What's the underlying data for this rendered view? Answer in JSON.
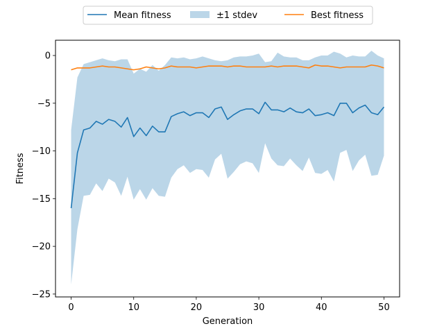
{
  "chart_data": {
    "type": "line",
    "title": "",
    "xlabel": "Generation",
    "ylabel": "Fitness",
    "xlim": [
      -2.5,
      52.5
    ],
    "ylim": [
      -25.3,
      1.6
    ],
    "xticks": [
      0,
      10,
      20,
      30,
      40,
      50
    ],
    "yticks": [
      0,
      -5,
      -10,
      -15,
      -20,
      -25
    ],
    "grid": false,
    "legend_position": "top-center, above plot",
    "x": [
      0,
      1,
      2,
      3,
      4,
      5,
      6,
      7,
      8,
      9,
      10,
      11,
      12,
      13,
      14,
      15,
      16,
      17,
      18,
      19,
      20,
      21,
      22,
      23,
      24,
      25,
      26,
      27,
      28,
      29,
      30,
      31,
      32,
      33,
      34,
      35,
      36,
      37,
      38,
      39,
      40,
      41,
      42,
      43,
      44,
      45,
      46,
      47,
      48,
      49,
      50
    ],
    "series": [
      {
        "name": "Mean fitness",
        "kind": "line",
        "color": "#1f77b4",
        "values": [
          -16.0,
          -10.2,
          -7.8,
          -7.6,
          -6.9,
          -7.2,
          -6.7,
          -6.9,
          -7.5,
          -6.5,
          -8.5,
          -7.6,
          -8.4,
          -7.4,
          -8.0,
          -8.0,
          -6.4,
          -6.1,
          -5.9,
          -6.3,
          -6.0,
          -6.0,
          -6.5,
          -5.6,
          -5.4,
          -6.7,
          -6.2,
          -5.8,
          -5.6,
          -5.6,
          -6.1,
          -4.9,
          -5.7,
          -5.7,
          -5.9,
          -5.5,
          -5.9,
          -6.0,
          -5.6,
          -6.3,
          -6.2,
          -6.0,
          -6.3,
          -5.0,
          -5.0,
          -6.0,
          -5.5,
          -5.2,
          -6.0,
          -6.2,
          -5.4
        ]
      },
      {
        "name": "±1 stdev",
        "kind": "band",
        "color": "#1f77b4",
        "opacity": 0.3,
        "upper": [
          -7.8,
          -2.3,
          -0.9,
          -0.7,
          -0.5,
          -0.3,
          -0.5,
          -0.6,
          -0.4,
          -0.4,
          -1.9,
          -1.4,
          -1.7,
          -1.0,
          -1.6,
          -1.0,
          -0.2,
          -0.3,
          -0.2,
          -0.4,
          -0.3,
          -0.1,
          -0.3,
          -0.5,
          -0.6,
          -0.5,
          -0.2,
          -0.1,
          -0.1,
          0.0,
          0.2,
          -0.7,
          -0.6,
          0.3,
          -0.1,
          -0.2,
          -0.2,
          -0.5,
          -0.5,
          -0.2,
          0.0,
          0.0,
          0.4,
          0.2,
          -0.2,
          0.0,
          -0.1,
          -0.1,
          0.5,
          0.0,
          -0.3
        ],
        "lower": [
          -24.0,
          -18.2,
          -14.7,
          -14.6,
          -13.4,
          -14.2,
          -12.9,
          -13.3,
          -14.7,
          -12.7,
          -15.1,
          -14.0,
          -15.1,
          -13.9,
          -14.7,
          -14.8,
          -12.8,
          -11.9,
          -11.5,
          -12.3,
          -11.9,
          -12.0,
          -12.8,
          -10.9,
          -10.3,
          -12.9,
          -12.2,
          -11.4,
          -11.1,
          -11.3,
          -12.3,
          -9.2,
          -10.8,
          -11.5,
          -11.6,
          -10.8,
          -11.5,
          -12.1,
          -10.7,
          -12.3,
          -12.4,
          -12.0,
          -13.2,
          -10.2,
          -9.9,
          -12.1,
          -11.0,
          -10.4,
          -12.6,
          -12.5,
          -10.5
        ]
      },
      {
        "name": "Best fitness",
        "kind": "line",
        "color": "#ff7f0e",
        "values": [
          -1.5,
          -1.3,
          -1.3,
          -1.3,
          -1.2,
          -1.1,
          -1.2,
          -1.2,
          -1.3,
          -1.4,
          -1.5,
          -1.4,
          -1.2,
          -1.3,
          -1.4,
          -1.3,
          -1.1,
          -1.2,
          -1.2,
          -1.2,
          -1.3,
          -1.2,
          -1.1,
          -1.1,
          -1.1,
          -1.2,
          -1.1,
          -1.1,
          -1.2,
          -1.2,
          -1.2,
          -1.2,
          -1.1,
          -1.2,
          -1.1,
          -1.1,
          -1.1,
          -1.2,
          -1.3,
          -1.0,
          -1.1,
          -1.1,
          -1.2,
          -1.3,
          -1.2,
          -1.2,
          -1.2,
          -1.2,
          -1.0,
          -1.1,
          -1.3
        ]
      }
    ]
  }
}
